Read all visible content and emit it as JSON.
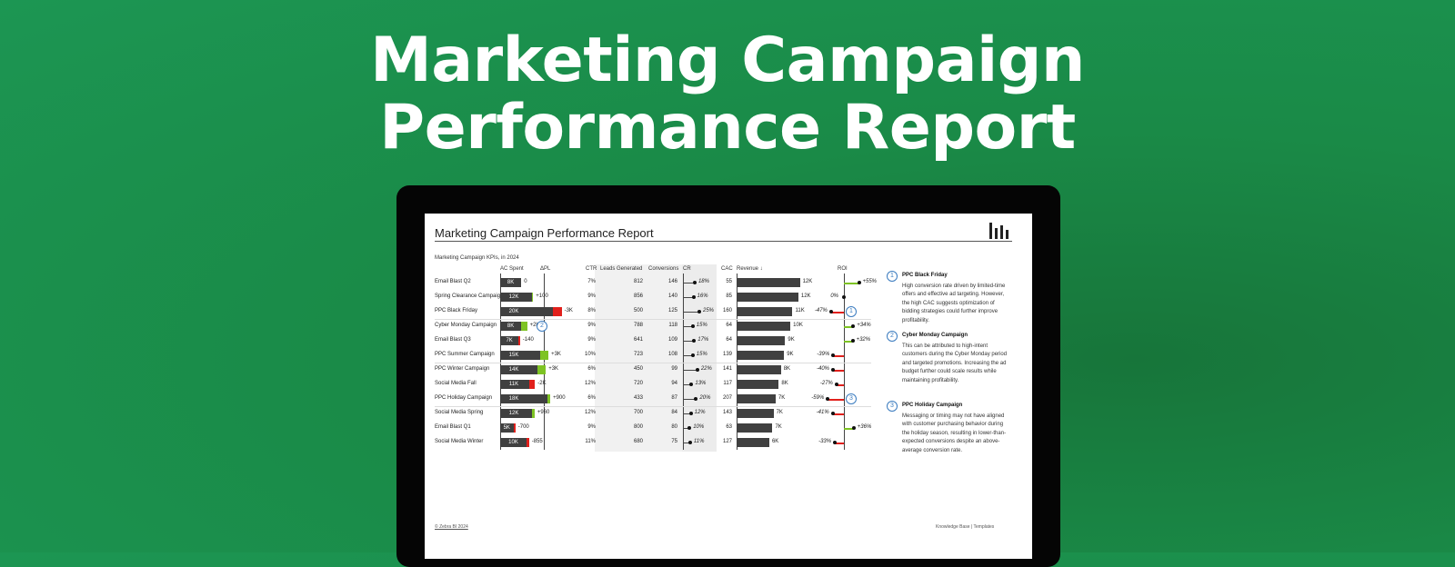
{
  "hero": {
    "title_line1": "Marketing Campaign",
    "title_line2": "Performance Report"
  },
  "report": {
    "title": "Marketing Campaign Performance Report",
    "subtitle": "Marketing Campaign KPIs, in 2024",
    "headers": {
      "ac_spent": "AC Spent",
      "dpl": "ΔPL",
      "ctr": "CTR",
      "leads": "Leads Generated",
      "conversions": "Conversions",
      "cr": "CR",
      "cac": "CAC",
      "revenue": "Revenue ↓",
      "roi": "ROI"
    },
    "rows": [
      {
        "name": "Email Blast Q2",
        "spent_label": "8K",
        "spent": 8,
        "dpl_label": "0",
        "dpl": 0,
        "ctr": "7%",
        "leads": "812",
        "conv": "146",
        "cr_label": "18%",
        "cr": 18,
        "cac": "55",
        "rev_label": "12K",
        "rev": 12,
        "roi_label": "+55%",
        "roi": 55
      },
      {
        "name": "Spring Clearance Campaign",
        "spent_label": "12K",
        "spent": 12,
        "dpl_label": "+100",
        "dpl": 0.1,
        "ctr": "9%",
        "leads": "856",
        "conv": "140",
        "cr_label": "16%",
        "cr": 16,
        "cac": "85",
        "rev_label": "12K",
        "rev": 11.7,
        "roi_label": "0%",
        "roi": 0
      },
      {
        "name": "PPC Black Friday",
        "spent_label": "20K",
        "spent": 20,
        "dpl_label": "-3K",
        "dpl": -3,
        "ctr": "8%",
        "leads": "500",
        "conv": "125",
        "cr_label": "25%",
        "cr": 25,
        "cac": "160",
        "rev_label": "11K",
        "rev": 10.6,
        "roi_label": "-47%",
        "roi": -47,
        "badge": "1"
      },
      {
        "name": "Cyber Monday Campaign",
        "spent_label": "8K",
        "spent": 8,
        "dpl_label": "+2K",
        "dpl": 2,
        "ctr": "9%",
        "leads": "788",
        "conv": "118",
        "cr_label": "15%",
        "cr": 15,
        "cac": "64",
        "rev_label": "10K",
        "rev": 10.2,
        "roi_label": "+34%",
        "roi": 34,
        "badge": "2"
      },
      {
        "name": "Email Blast Q3",
        "spent_label": "7K",
        "spent": 7,
        "dpl_label": "-140",
        "dpl": -0.14,
        "ctr": "9%",
        "leads": "641",
        "conv": "109",
        "cr_label": "17%",
        "cr": 17,
        "cac": "64",
        "rev_label": "9K",
        "rev": 9.2,
        "roi_label": "+32%",
        "roi": 32
      },
      {
        "name": "PPC Summer Campaign",
        "spent_label": "15K",
        "spent": 15,
        "dpl_label": "+3K",
        "dpl": 3,
        "ctr": "10%",
        "leads": "723",
        "conv": "108",
        "cr_label": "15%",
        "cr": 15,
        "cac": "139",
        "rev_label": "9K",
        "rev": 9,
        "roi_label": "-39%",
        "roi": -39
      },
      {
        "name": "PPC Winter Campaign",
        "spent_label": "14K",
        "spent": 14,
        "dpl_label": "+3K",
        "dpl": 3,
        "ctr": "6%",
        "leads": "450",
        "conv": "99",
        "cr_label": "22%",
        "cr": 22,
        "cac": "141",
        "rev_label": "8K",
        "rev": 8.4,
        "roi_label": "-40%",
        "roi": -40
      },
      {
        "name": "Social Media Fall",
        "spent_label": "11K",
        "spent": 11,
        "dpl_label": "-2K",
        "dpl": -2,
        "ctr": "12%",
        "leads": "720",
        "conv": "94",
        "cr_label": "13%",
        "cr": 13,
        "cac": "117",
        "rev_label": "8K",
        "rev": 8,
        "roi_label": "-27%",
        "roi": -27
      },
      {
        "name": "PPC Holiday Campaign",
        "spent_label": "18K",
        "spent": 18,
        "dpl_label": "+900",
        "dpl": 0.9,
        "ctr": "6%",
        "leads": "433",
        "conv": "87",
        "cr_label": "20%",
        "cr": 20,
        "cac": "207",
        "rev_label": "7K",
        "rev": 7.4,
        "roi_label": "-59%",
        "roi": -59,
        "badge": "3"
      },
      {
        "name": "Social Media Spring",
        "spent_label": "12K",
        "spent": 12,
        "dpl_label": "+960",
        "dpl": 0.96,
        "ctr": "12%",
        "leads": "700",
        "conv": "84",
        "cr_label": "12%",
        "cr": 12,
        "cac": "143",
        "rev_label": "7K",
        "rev": 7,
        "roi_label": "-41%",
        "roi": -41
      },
      {
        "name": "Email Blast Q1",
        "spent_label": "5K",
        "spent": 5,
        "dpl_label": "-700",
        "dpl": -0.7,
        "ctr": "9%",
        "leads": "800",
        "conv": "80",
        "cr_label": "10%",
        "cr": 10,
        "cac": "63",
        "rev_label": "7K",
        "rev": 6.8,
        "roi_label": "+36%",
        "roi": 36
      },
      {
        "name": "Social Media Winter",
        "spent_label": "10K",
        "spent": 10,
        "dpl_label": "-855",
        "dpl": -0.855,
        "ctr": "11%",
        "leads": "680",
        "conv": "75",
        "cr_label": "11%",
        "cr": 11,
        "cac": "127",
        "rev_label": "6K",
        "rev": 6.2,
        "roi_label": "-33%",
        "roi": -33
      }
    ],
    "notes": [
      {
        "num": "1",
        "title": "PPC Black Friday",
        "text": "High conversion rate driven by limited-time offers and effective ad targeting. However, the high CAC suggests optimization of bidding strategies could further improve profitability."
      },
      {
        "num": "2",
        "title": "Cyber Monday Campaign",
        "text": "This can be attributed to high-intent customers during the Cyber Monday period and targeted promotions. Increasing the ad budget further could scale results while maintaining profitability."
      },
      {
        "num": "3",
        "title": "PPC Holiday Campaign",
        "text": "Messaging or timing may not have aligned with customer purchasing behavior during the holiday season, resulting in lower-than-expected conversions despite an above-average conversion rate."
      }
    ],
    "footer_left": "© Zebra BI 2024",
    "footer_right": "Knowledge Base  |  Templates"
  },
  "colors": {
    "positive": "#7ec324",
    "negative": "#e1201c",
    "bar": "#404040",
    "badge": "#3a7bbf"
  }
}
